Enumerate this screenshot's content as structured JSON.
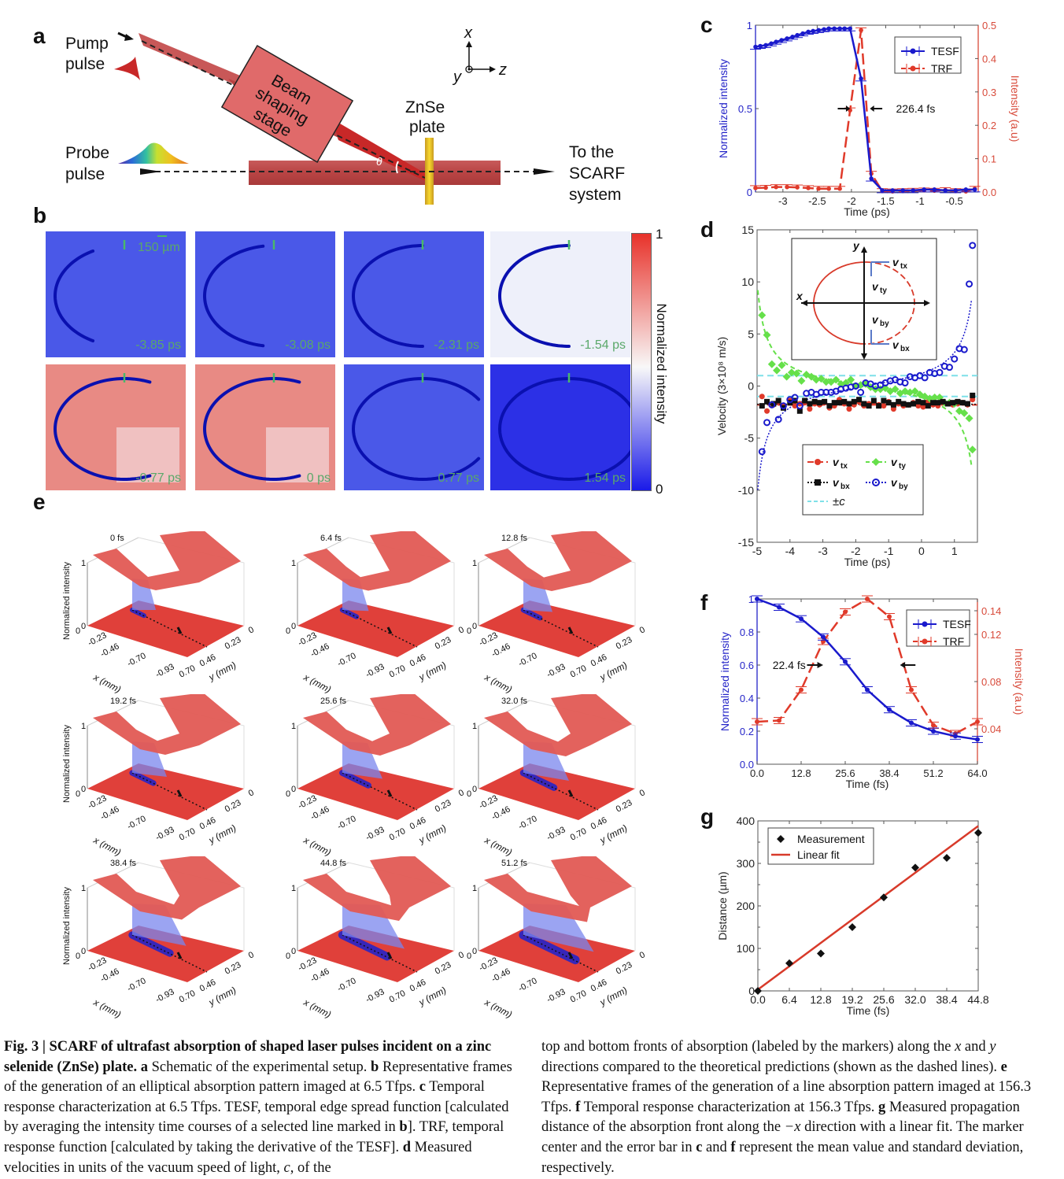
{
  "panel_labels": {
    "a": "a",
    "b": "b",
    "c": "c",
    "d": "d",
    "e": "e",
    "f": "f",
    "g": "g"
  },
  "schematic": {
    "pump_label": [
      "Pump",
      "pulse"
    ],
    "probe_label": [
      "Probe",
      "pulse"
    ],
    "stage_label": [
      "Beam",
      "shaping",
      "stage"
    ],
    "plate_label": [
      "ZnSe",
      "plate"
    ],
    "output_label": [
      "To the",
      "SCARF",
      "system"
    ],
    "angle_label": "θ",
    "axes": {
      "x": "x",
      "y": "y",
      "z": "z"
    }
  },
  "frames_b": {
    "scale_bar": "150 µm",
    "colorbar_label": "Normalized intensity",
    "colorbar_max": "1",
    "colorbar_min": "0",
    "tiles": [
      {
        "time": "-3.85 ps",
        "bg": "blue",
        "arc": 0.35
      },
      {
        "time": "-3.08 ps",
        "bg": "blue",
        "arc": 0.45
      },
      {
        "time": "-2.31 ps",
        "bg": "blue",
        "arc": 0.5
      },
      {
        "time": "-1.54 ps",
        "bg": "white",
        "arc": 0.5
      },
      {
        "time": "-0.77 ps",
        "bg": "red",
        "arc": 0.62
      },
      {
        "time": "0 ps",
        "bg": "red",
        "arc": 0.62
      },
      {
        "time": "0.77 ps",
        "bg": "blue",
        "arc": 0.8
      },
      {
        "time": "1.54 ps",
        "bg": "darkblue",
        "arc": 1.0
      }
    ]
  },
  "frames_e": {
    "zlabel": "Normalized intensity",
    "x_label": "x (mm)",
    "y_label": "y (mm)",
    "x_ticks": [
      "0",
      "-0.23",
      "-0.46",
      "-0.70",
      "-0.93"
    ],
    "y_ticks": [
      "0.70",
      "0.46",
      "0.23",
      "0"
    ],
    "z_ticks": [
      "0",
      "1"
    ],
    "times": [
      "0 fs",
      "6.4 fs",
      "12.8 fs",
      "19.2 fs",
      "25.6 fs",
      "32.0 fs",
      "38.4 fs",
      "44.8 fs",
      "51.2 fs"
    ],
    "progress": [
      0.0,
      0.05,
      0.1,
      0.2,
      0.3,
      0.4,
      0.55,
      0.7,
      0.85
    ]
  },
  "chart_data": [
    {
      "id": "c",
      "type": "line",
      "xlabel": "Time (ps)",
      "ylabel": "Normalized intensity",
      "y2label": "Intensity (a.u)",
      "xlim": [
        -3.4,
        -0.15
      ],
      "ylim": [
        0,
        1
      ],
      "y2lim": [
        0,
        0.5
      ],
      "xticks": [
        -3,
        -2.5,
        -2,
        -1.5,
        -1,
        -0.5
      ],
      "xtick_labels": [
        "-3",
        "-2.5",
        "-2",
        "-1.5",
        "-1",
        "-0.5"
      ],
      "yticks": [
        0,
        0.5,
        1
      ],
      "ytick_labels": [
        "0",
        "0.5",
        "1"
      ],
      "y2ticks": [
        0,
        0.1,
        0.2,
        0.3,
        0.4,
        0.5
      ],
      "y2tick_labels": [
        "0.0",
        "0.1",
        "0.2",
        "0.3",
        "0.4",
        "0.5"
      ],
      "annotation": "226.4 fs",
      "legend": [
        "TESF",
        "TRF"
      ],
      "legend_position": "top-right",
      "series": [
        {
          "name": "TESF",
          "axis": "left",
          "color": "#1a1acc",
          "x": [
            -3.4,
            -3.33,
            -3.25,
            -3.17,
            -3.1,
            -3.02,
            -2.94,
            -2.86,
            -2.79,
            -2.71,
            -2.63,
            -2.56,
            -2.48,
            -2.4,
            -2.33,
            -2.25,
            -2.17,
            -2.1,
            -2.02,
            -1.86,
            -1.71,
            -1.55,
            -1.4,
            -1.25,
            -1.1,
            -0.94,
            -0.79,
            -0.63,
            -0.48,
            -0.33,
            -0.2
          ],
          "y": [
            0.87,
            0.875,
            0.88,
            0.89,
            0.9,
            0.91,
            0.92,
            0.93,
            0.94,
            0.95,
            0.96,
            0.965,
            0.97,
            0.975,
            0.98,
            0.98,
            0.98,
            0.98,
            0.98,
            0.68,
            0.08,
            0.01,
            0.01,
            0.01,
            0.01,
            0.015,
            0.015,
            0.01,
            0.01,
            0.015,
            0.015
          ]
        },
        {
          "name": "TRF",
          "axis": "right",
          "color": "#e03a2a",
          "x": [
            -3.4,
            -3.25,
            -3.1,
            -2.94,
            -2.79,
            -2.63,
            -2.48,
            -2.33,
            -2.17,
            -2.02,
            -1.86,
            -1.71,
            -1.55,
            -1.4,
            -1.25,
            -1.1,
            -0.94,
            -0.79,
            -0.63,
            -0.48,
            -0.33,
            -0.2
          ],
          "y": [
            0.012,
            0.013,
            0.015,
            0.015,
            0.014,
            0.012,
            0.01,
            0.01,
            0.01,
            0.245,
            0.485,
            0.055,
            0.003,
            0.002,
            0.003,
            0.004,
            0.005,
            0.004,
            0.006,
            0.003,
            0.002,
            0.01
          ]
        }
      ]
    },
    {
      "id": "d",
      "type": "scatter",
      "xlabel": "Time (ps)",
      "ylabel": "Velocity (3×10⁸ m/s)",
      "xlim": [
        -5,
        1.7
      ],
      "ylim": [
        -15,
        15
      ],
      "xticks": [
        -5,
        -4,
        -3,
        -2,
        -1,
        0,
        1
      ],
      "xtick_labels": [
        "-5",
        "-4",
        "-3",
        "-2",
        "-1",
        "0",
        "1"
      ],
      "yticks": [
        -15,
        -10,
        -5,
        0,
        5,
        10,
        15
      ],
      "ytick_labels": [
        "-15",
        "-10",
        "-5",
        "0",
        "5",
        "10",
        "15"
      ],
      "legend": [
        "v_tx",
        "v_ty",
        "v_bx",
        "v_by",
        "±c"
      ],
      "legend_position": "bottom-center",
      "inset": {
        "labels": [
          "y",
          "x",
          "v_tx",
          "v_ty",
          "v_by",
          "v_bx"
        ]
      },
      "series": [
        {
          "name": "v_tx",
          "color": "#e03a2a",
          "marker": "circle",
          "x": [
            -4.85,
            -4.7,
            -4.5,
            -4.35,
            -4.2,
            -4.0,
            -3.85,
            -3.7,
            -3.55,
            -3.4,
            -3.25,
            -3.1,
            -2.95,
            -2.8,
            -2.65,
            -2.5,
            -2.35,
            -2.2,
            -2.05,
            -1.9,
            -1.75,
            -1.6,
            -1.45,
            -1.3,
            -1.15,
            -1.0,
            -0.85,
            -0.7,
            -0.55,
            -0.4,
            -0.25,
            -0.1,
            0.05,
            0.2,
            0.35,
            0.5,
            0.65,
            0.8,
            0.95,
            1.1,
            1.25,
            1.4,
            1.55
          ],
          "y": [
            -1.0,
            -2.4,
            -1.8,
            -1.5,
            -1.9,
            -1.4,
            -1.9,
            -1.7,
            -1.6,
            -2.2,
            -1.7,
            -1.8,
            -1.6,
            -2.1,
            -1.9,
            -1.3,
            -1.7,
            -2.2,
            -1.8,
            -1.5,
            -1.9,
            -1.7,
            -1.6,
            -1.8,
            -1.9,
            -1.5,
            -2.2,
            -1.7,
            -1.9,
            -1.8,
            -1.6,
            -1.9,
            -2.0,
            -1.5,
            -1.8,
            -1.9,
            -1.6,
            -1.7,
            -1.8,
            -1.7,
            -1.6,
            -1.8,
            -1.3
          ]
        },
        {
          "name": "v_ty",
          "color": "#66e04a",
          "marker": "diamond",
          "x": [
            -4.85,
            -4.7,
            -4.55,
            -4.4,
            -4.25,
            -4.1,
            -3.95,
            -3.8,
            -3.65,
            -3.5,
            -3.35,
            -3.2,
            -3.05,
            -2.9,
            -2.75,
            -2.6,
            -2.45,
            -2.3,
            -2.15,
            -2.0,
            -1.85,
            -1.7,
            -1.55,
            -1.4,
            -1.25,
            -1.1,
            -0.95,
            -0.8,
            -0.65,
            -0.5,
            -0.35,
            -0.2,
            -0.05,
            0.1,
            0.25,
            0.4,
            0.55,
            0.7,
            0.85,
            1.0,
            1.15,
            1.3,
            1.45,
            1.55
          ],
          "y": [
            6.8,
            4.9,
            2.1,
            1.5,
            2.0,
            0.9,
            1.3,
            1.2,
            0.5,
            1.1,
            0.9,
            0.6,
            0.7,
            0.4,
            0.4,
            0.6,
            0.2,
            0.3,
            0.6,
            0.0,
            0.1,
            0.2,
            -0.1,
            -0.3,
            -0.3,
            -0.2,
            -0.5,
            -0.3,
            -0.7,
            -0.5,
            -0.6,
            -0.5,
            -0.8,
            -1.0,
            -1.2,
            -1.1,
            -1.1,
            -1.6,
            -1.6,
            -1.7,
            -2.4,
            -2.6,
            -3.1,
            -6.1
          ]
        },
        {
          "name": "v_bx",
          "color": "#111111",
          "marker": "square",
          "x": [
            -4.85,
            -4.7,
            -4.5,
            -4.35,
            -4.2,
            -4.0,
            -3.85,
            -3.7,
            -3.55,
            -3.4,
            -3.25,
            -3.1,
            -2.95,
            -2.8,
            -2.65,
            -2.5,
            -2.35,
            -2.2,
            -2.05,
            -1.9,
            -1.75,
            -1.6,
            -1.45,
            -1.3,
            -1.15,
            -1.0,
            -0.85,
            -0.7,
            -0.55,
            -0.4,
            -0.25,
            -0.1,
            0.05,
            0.2,
            0.35,
            0.5,
            0.65,
            0.8,
            0.95,
            1.1,
            1.25,
            1.4,
            1.55
          ],
          "y": [
            -1.9,
            -1.5,
            -1.7,
            -1.4,
            -2.1,
            -1.6,
            -1.4,
            -2.4,
            -1.4,
            -1.7,
            -1.5,
            -1.6,
            -1.5,
            -1.9,
            -1.6,
            -1.6,
            -1.5,
            -1.7,
            -1.5,
            -1.3,
            -1.7,
            -1.9,
            -1.4,
            -1.9,
            -1.4,
            -1.6,
            -1.8,
            -1.5,
            -1.7,
            -1.8,
            -1.7,
            -1.5,
            -1.6,
            -1.9,
            -1.6,
            -1.6,
            -1.5,
            -1.7,
            -1.6,
            -1.5,
            -1.6,
            -1.7,
            -0.9
          ]
        },
        {
          "name": "v_by",
          "color": "#1a1acc",
          "marker": "open-circle",
          "x": [
            -4.85,
            -4.7,
            -4.55,
            -4.35,
            -4.2,
            -4.0,
            -3.85,
            -3.7,
            -3.5,
            -3.35,
            -3.2,
            -3.05,
            -2.9,
            -2.75,
            -2.6,
            -2.45,
            -2.3,
            -2.15,
            -2.0,
            -1.85,
            -1.7,
            -1.55,
            -1.4,
            -1.25,
            -1.1,
            -0.95,
            -0.8,
            -0.65,
            -0.5,
            -0.35,
            -0.2,
            -0.05,
            0.1,
            0.25,
            0.4,
            0.55,
            0.7,
            0.85,
            1.0,
            1.15,
            1.3,
            1.45,
            1.55
          ],
          "y": [
            -6.3,
            -3.5,
            -1.8,
            -3.2,
            -1.9,
            -1.3,
            -1.1,
            -1.9,
            -0.7,
            -0.6,
            -0.8,
            -0.6,
            -0.6,
            -0.6,
            -0.5,
            -0.3,
            -0.2,
            -0.1,
            0.0,
            -0.6,
            0.3,
            0.2,
            0.0,
            0.1,
            0.3,
            0.5,
            0.6,
            0.4,
            0.3,
            0.9,
            0.8,
            1.0,
            0.8,
            1.3,
            1.2,
            1.3,
            1.9,
            1.8,
            2.6,
            3.6,
            3.5,
            9.8,
            13.5
          ]
        },
        {
          "name": "±c",
          "color": "#7ee0e8",
          "marker": "none",
          "x": [
            -5,
            1.7
          ],
          "y_values": [
            1,
            -1
          ]
        }
      ]
    },
    {
      "id": "f",
      "type": "line",
      "xlabel": "Time (fs)",
      "ylabel": "Normalized intensity",
      "y2label": "Intensity (a.u)",
      "xlim": [
        0,
        64
      ],
      "ylim": [
        0,
        1
      ],
      "y2lim": [
        0.01,
        0.15
      ],
      "xticks": [
        0,
        12.8,
        25.6,
        38.4,
        51.2,
        64
      ],
      "xtick_labels": [
        "0.0",
        "12.8",
        "25.6",
        "38.4",
        "51.2",
        "64.0"
      ],
      "yticks": [
        0,
        0.2,
        0.4,
        0.6,
        0.8,
        1
      ],
      "ytick_labels": [
        "0.0",
        "0.2",
        "0.4",
        "0.6",
        "0.8",
        "1"
      ],
      "y2ticks": [
        0.04,
        0.08,
        0.12,
        0.14
      ],
      "y2tick_labels": [
        "0.04",
        "0.08",
        "0.12",
        "0.14"
      ],
      "annotation": "22.4 fs",
      "legend": [
        "TESF",
        "TRF"
      ],
      "legend_position": "top-right",
      "series": [
        {
          "name": "TESF",
          "axis": "left",
          "color": "#1a1acc",
          "x": [
            0,
            6.4,
            12.8,
            19.2,
            25.6,
            32,
            38.4,
            44.8,
            51.2,
            57.6,
            64
          ],
          "y": [
            1.0,
            0.95,
            0.88,
            0.77,
            0.62,
            0.45,
            0.33,
            0.25,
            0.2,
            0.17,
            0.15
          ]
        },
        {
          "name": "TRF",
          "axis": "right",
          "color": "#e03a2a",
          "x": [
            0,
            6.4,
            12.8,
            19.2,
            25.6,
            32,
            38.4,
            44.8,
            51.2,
            57.6,
            64
          ],
          "y": [
            0.046,
            0.047,
            0.073,
            0.114,
            0.139,
            0.15,
            0.135,
            0.073,
            0.043,
            0.036,
            0.046
          ]
        }
      ]
    },
    {
      "id": "g",
      "type": "scatter",
      "xlabel": "Time (fs)",
      "ylabel": "Distance (µm)",
      "xlim": [
        0,
        44.8
      ],
      "ylim": [
        0,
        400
      ],
      "xticks": [
        0,
        6.4,
        12.8,
        19.2,
        25.6,
        32,
        38.4,
        44.8
      ],
      "xtick_labels": [
        "0.0",
        "6.4",
        "12.8",
        "19.2",
        "25.6",
        "32.0",
        "38.4",
        "44.8"
      ],
      "yticks": [
        0,
        100,
        200,
        300,
        400
      ],
      "ytick_labels": [
        "0",
        "100",
        "200",
        "300",
        "400"
      ],
      "legend": [
        "Measurement",
        "Linear fit"
      ],
      "legend_position": "top-left",
      "series": [
        {
          "name": "Measurement",
          "color": "#111111",
          "marker": "diamond",
          "x": [
            0,
            6.4,
            12.8,
            19.2,
            25.6,
            32,
            38.4,
            44.8
          ],
          "y": [
            0,
            65,
            88,
            150,
            220,
            290,
            313,
            372
          ]
        },
        {
          "name": "Linear fit",
          "color": "#d83a2a",
          "marker": "none",
          "x": [
            0,
            44.8
          ],
          "y": [
            3,
            388
          ]
        }
      ]
    }
  ],
  "caption": {
    "left_bold": "Fig. 3 | SCARF of ultrafast absorption of shaped laser pulses incident on a zinc selenide (ZnSe) plate.",
    "a_text": " Schematic of the experimental setup. ",
    "b_text": " Representative frames of the generation of an elliptical absorption pattern imaged at 6.5 Tfps. ",
    "c_text": " Temporal response characterization at 6.5 Tfps. TESF, temporal edge spread function [calculated by averaging the intensity time courses of a selected line marked in ",
    "c_text2": "]. TRF, temporal response function [calculated by taking the derivative of the TESF]. ",
    "d_text": " Measured velocities in units of the vacuum speed of light, ",
    "d_c": "c",
    "d_text2": ", of the top and bottom fronts of absorption (labeled by the markers) along the ",
    "d_x": "x",
    "d_and": " and ",
    "d_y": "y",
    "d_text3": " directions compared to the theoretical predictions (shown as the dashed lines). ",
    "e_text": " Representative frames of the generation of a line absorption pattern imaged at 156.3 Tfps. ",
    "f_text": " Temporal response characterization at 156.3 Tfps. ",
    "g_text": " Measured propagation distance of the absorption front along the ",
    "g_x": "−x",
    "g_text2": " direction with a linear fit. The marker center and the error bar in ",
    "g_c": "c",
    "g_and": " and ",
    "g_f": "f",
    "g_text3": " represent the mean value and standard deviation, respectively."
  }
}
